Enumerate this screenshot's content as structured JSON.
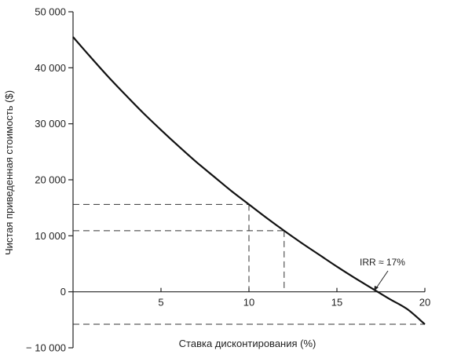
{
  "chart_data": {
    "type": "line",
    "title": "",
    "xlabel": "Ставка дисконтирования (%)",
    "ylabel": "Чистая приведенная стоимость ($)",
    "xlim": [
      0,
      20
    ],
    "ylim": [
      -10000,
      50000
    ],
    "grid": false,
    "x_ticks": [
      5,
      10,
      15,
      20
    ],
    "x_tick_labels": [
      "5",
      "10",
      "15",
      "20"
    ],
    "y_ticks": [
      -10000,
      0,
      10000,
      20000,
      30000,
      40000,
      50000
    ],
    "y_tick_labels": [
      "− 10 000",
      "0",
      "10 000",
      "20 000",
      "30 000",
      "40 000",
      "50 000"
    ],
    "series": [
      {
        "x": [
          0,
          1,
          2,
          3,
          4,
          5,
          6,
          7,
          8,
          9,
          10,
          11,
          12,
          13,
          14,
          15,
          16,
          17,
          18,
          19,
          20
        ],
        "y": [
          45500,
          41900,
          38400,
          35100,
          31900,
          28900,
          26000,
          23200,
          20600,
          18000,
          15600,
          13200,
          10900,
          8700,
          6600,
          4500,
          2500,
          600,
          -1300,
          -3100,
          -5800
        ]
      }
    ],
    "reference_lines": [
      {
        "x": 10,
        "y": 15600
      },
      {
        "x": 12,
        "y": 10900
      },
      {
        "x": 20,
        "y": -5800
      }
    ],
    "annotations": [
      {
        "text": "IRR ≈ 17%",
        "x": 17,
        "y": 0
      }
    ]
  }
}
